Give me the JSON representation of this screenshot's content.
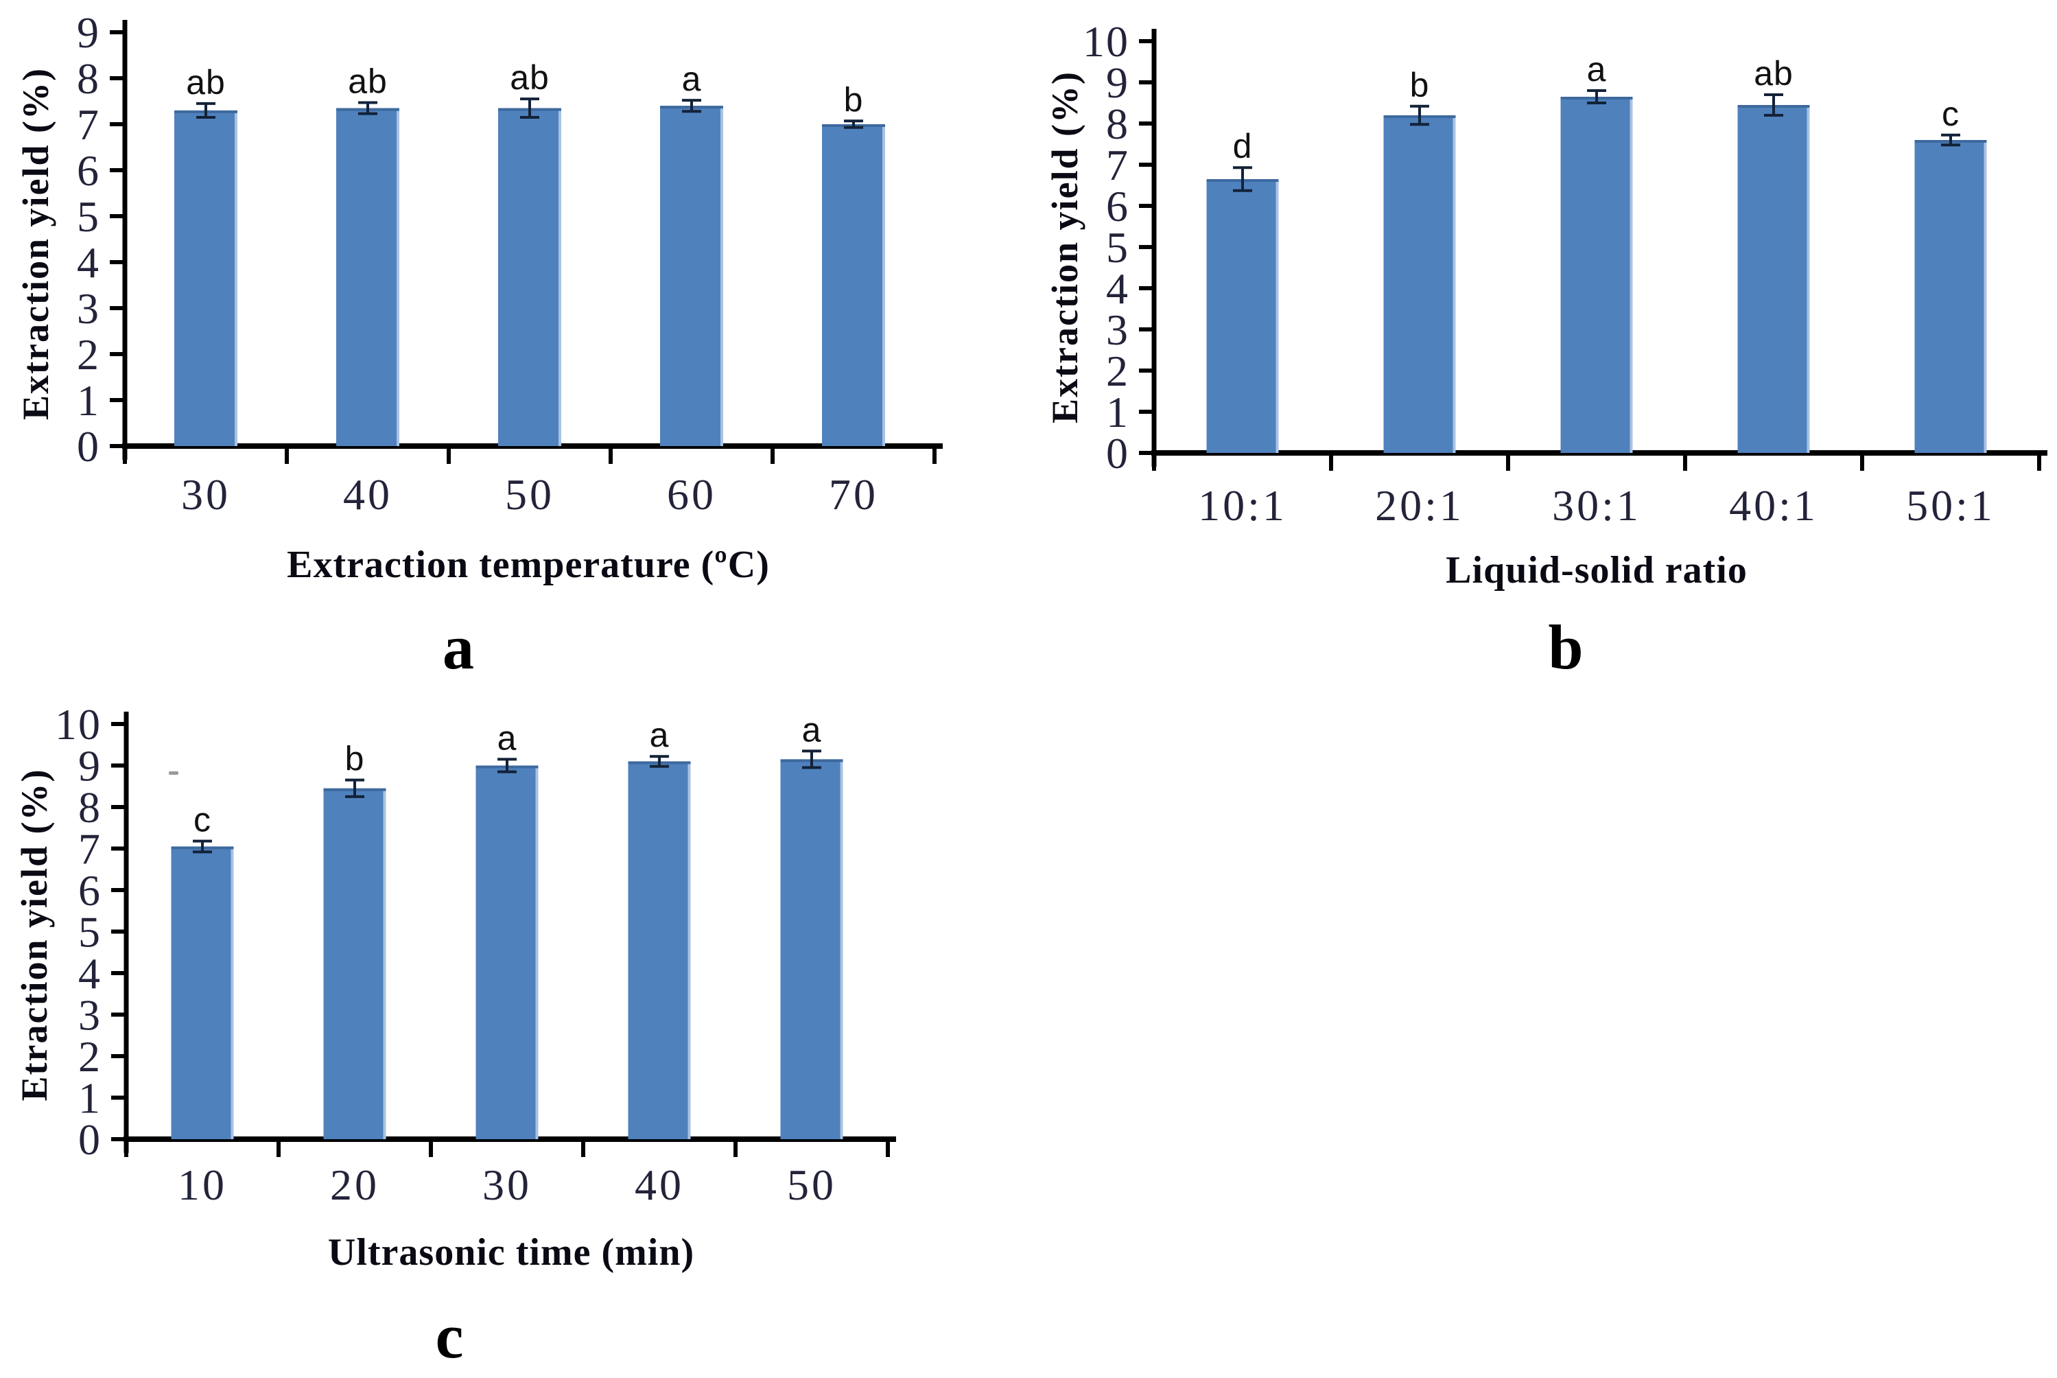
{
  "page": {
    "background": "#ffffff"
  },
  "styles": {
    "bar_color": "#4F81BD",
    "bar_right_edge_color": "#A9C2E2",
    "bar_top_edge_color": "#3D699E",
    "error_bar_color": "#132238",
    "axis_color": "#000000",
    "tick_label_color": "#23233A",
    "sig_letter_color": "#111111"
  },
  "chart_data": [
    {
      "id": "a",
      "type": "bar",
      "panel_label": "a",
      "title": "",
      "xlabel": "Extraction temperature (ºC)",
      "ylabel": "Extraction yield (%)",
      "categories": [
        "30",
        "40",
        "50",
        "60",
        "70"
      ],
      "values": [
        7.3,
        7.35,
        7.35,
        7.4,
        7.0
      ],
      "errors": [
        0.15,
        0.12,
        0.2,
        0.12,
        0.07
      ],
      "sig_letters": [
        "ab",
        "ab",
        "ab",
        "a",
        "b"
      ],
      "ylim": [
        0,
        9
      ],
      "ytick_step": 1,
      "grid": false,
      "legend": "none"
    },
    {
      "id": "b",
      "type": "bar",
      "panel_label": "b",
      "title": "",
      "xlabel": "Liquid-solid ratio",
      "ylabel": "Extraction yield (%)",
      "categories": [
        "10:1",
        "20:1",
        "30:1",
        "40:1",
        "50:1"
      ],
      "values": [
        6.65,
        8.2,
        8.65,
        8.45,
        7.6
      ],
      "errors": [
        0.28,
        0.22,
        0.15,
        0.25,
        0.12
      ],
      "sig_letters": [
        "d",
        "b",
        "a",
        "ab",
        "c"
      ],
      "ylim": [
        0,
        10
      ],
      "ytick_step": 1,
      "grid": false,
      "legend": "none"
    },
    {
      "id": "c",
      "type": "bar",
      "panel_label": "c",
      "title": "",
      "xlabel": "Ultrasonic time (min)",
      "ylabel": "Etraction yield (%)",
      "categories": [
        "10",
        "20",
        "30",
        "40",
        "50"
      ],
      "values": [
        7.05,
        8.45,
        9.0,
        9.1,
        9.15
      ],
      "errors": [
        0.13,
        0.2,
        0.15,
        0.12,
        0.2
      ],
      "sig_letters": [
        "c",
        "b",
        "a",
        "a",
        "a"
      ],
      "ylim": [
        0,
        10
      ],
      "ytick_step": 1,
      "grid": false,
      "legend": "none"
    }
  ]
}
